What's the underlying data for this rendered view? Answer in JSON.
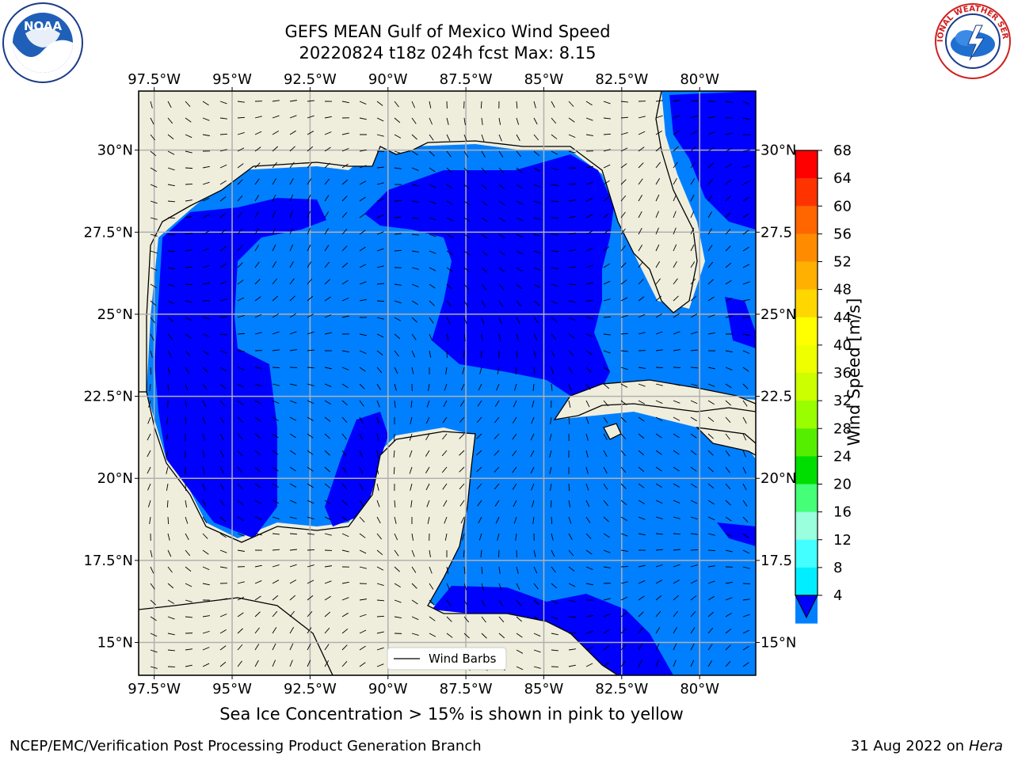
{
  "title_line1": "GEFS MEAN Gulf of Mexico Wind Speed",
  "title_line2": "20220824 t18z 024h fcst   Max: 8.15",
  "logos": {
    "noaa": {
      "icon": "noaa-logo",
      "text": "NOAA",
      "ring_text": "NATIONAL OCEANIC AND ATMOSPHERIC ADMINISTRATION · U.S. DEPARTMENT OF COMMERCE"
    },
    "nws": {
      "icon": "nws-logo",
      "ring_text": "NATIONAL WEATHER SERVICE"
    }
  },
  "map": {
    "lon_labels": [
      "97.5°W",
      "95°W",
      "92.5°W",
      "90°W",
      "87.5°W",
      "85°W",
      "82.5°W",
      "80°W"
    ],
    "lon_values": [
      -97.5,
      -95,
      -92.5,
      -90,
      -87.5,
      -85,
      -82.5,
      -80
    ],
    "lat_labels_left": [
      "30°N",
      "27.5°N",
      "25°N",
      "22.5°N",
      "20°N",
      "17.5°N",
      "15°N"
    ],
    "lat_labels_right": [
      "30°N",
      "27.5",
      "25°N",
      "22.5",
      "20°N",
      "17.5",
      "15°N"
    ],
    "lat_values": [
      30,
      27.5,
      25,
      22.5,
      20,
      17.5,
      15
    ],
    "lon_range": [
      -98,
      -78.2
    ],
    "lat_range": [
      14,
      31.8
    ],
    "legend_label": "Wind Barbs",
    "colors": {
      "land": "#efeedd",
      "band_4_8": "#0080ff",
      "below_4": "#0000ff",
      "grid": "#b0b0b0"
    }
  },
  "colorbar": {
    "title": "Wind Speed [m/s]",
    "ticks": [
      "68",
      "64",
      "60",
      "56",
      "52",
      "48",
      "44",
      "40",
      "36",
      "32",
      "28",
      "24",
      "20",
      "16",
      "12",
      "8",
      "4"
    ],
    "colors": [
      "#ff0000",
      "#ff3300",
      "#ff6600",
      "#ff8c00",
      "#ffb000",
      "#ffd700",
      "#ffff00",
      "#eeff00",
      "#ccff00",
      "#99ff00",
      "#55ee00",
      "#00dd00",
      "#44ff77",
      "#99ffdd",
      "#44ffff",
      "#00eeff",
      "#0080ff"
    ],
    "extend_color": "#0000ff"
  },
  "bottom_note": "Sea Ice Concentration > 15% is shown in pink to yellow",
  "footer_left": "NCEP/EMC/Verification Post Processing Product Generation Branch",
  "footer_date": "31 Aug 2022 on",
  "footer_machine": "Hera"
}
